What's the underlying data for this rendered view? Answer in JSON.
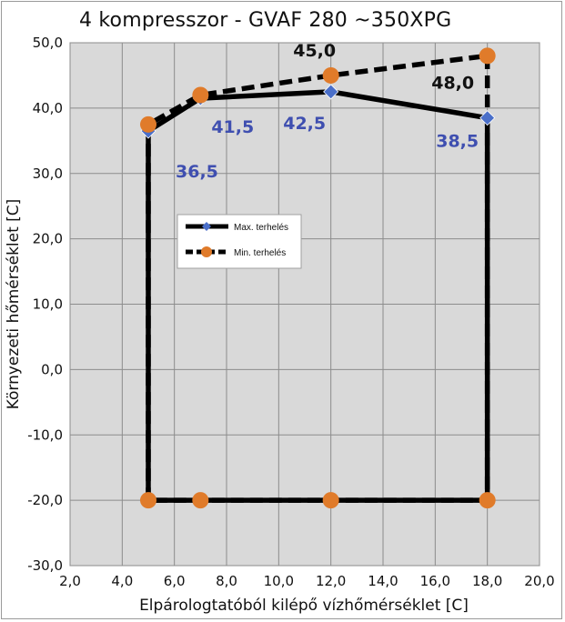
{
  "chart_data": {
    "type": "line",
    "title": "4 kompresszor - GVAF 280 ~350XPG",
    "xlabel": "Elpárologtatóból kilépő vízhőmérséklet [C]",
    "ylabel": "Környezeti hőmérséklet [C]",
    "xlim": [
      2,
      20
    ],
    "ylim": [
      -30,
      50
    ],
    "x_ticks": [
      "2,0",
      "4,0",
      "6,0",
      "8,0",
      "10,0",
      "12,0",
      "14,0",
      "16,0",
      "18,0",
      "20,0"
    ],
    "y_ticks": [
      "50,0",
      "40,0",
      "30,0",
      "20,0",
      "10,0",
      "0,0",
      "-10,0",
      "-20,0",
      "-30,0"
    ],
    "grid": true,
    "legend_position": "left-middle",
    "series": [
      {
        "name": "Max. terhelés",
        "style": "solid",
        "marker": "diamond",
        "marker_color": "#4a6fc9",
        "points": [
          [
            5,
            -20
          ],
          [
            5,
            36.5
          ],
          [
            7,
            41.5
          ],
          [
            12,
            42.5
          ],
          [
            18,
            38.5
          ],
          [
            18,
            -20
          ],
          [
            5,
            -20
          ]
        ],
        "labels": [
          {
            "x": 5,
            "y": 36.5,
            "text": "36,5"
          },
          {
            "x": 7,
            "y": 41.5,
            "text": "41,5"
          },
          {
            "x": 12,
            "y": 42.5,
            "text": "42,5"
          },
          {
            "x": 18,
            "y": 38.5,
            "text": "38,5"
          }
        ],
        "label_color": "#3f4fb0"
      },
      {
        "name": "Min. terhelés",
        "style": "dashed",
        "marker": "circle",
        "marker_color": "#e07b2a",
        "points": [
          [
            5,
            -20
          ],
          [
            5,
            37.5
          ],
          [
            7,
            42
          ],
          [
            12,
            45
          ],
          [
            18,
            48
          ],
          [
            18,
            -20
          ],
          [
            12,
            -20
          ],
          [
            7,
            -20
          ],
          [
            5,
            -20
          ]
        ],
        "labels": [
          {
            "x": 12,
            "y": 45,
            "text": "45,0"
          },
          {
            "x": 18,
            "y": 48,
            "text": "48,0"
          }
        ],
        "label_color": "#111111"
      }
    ]
  },
  "colors": {
    "plot_background": "#d9d9d9",
    "gridline": "#8c8c8c",
    "line": "#000000"
  }
}
